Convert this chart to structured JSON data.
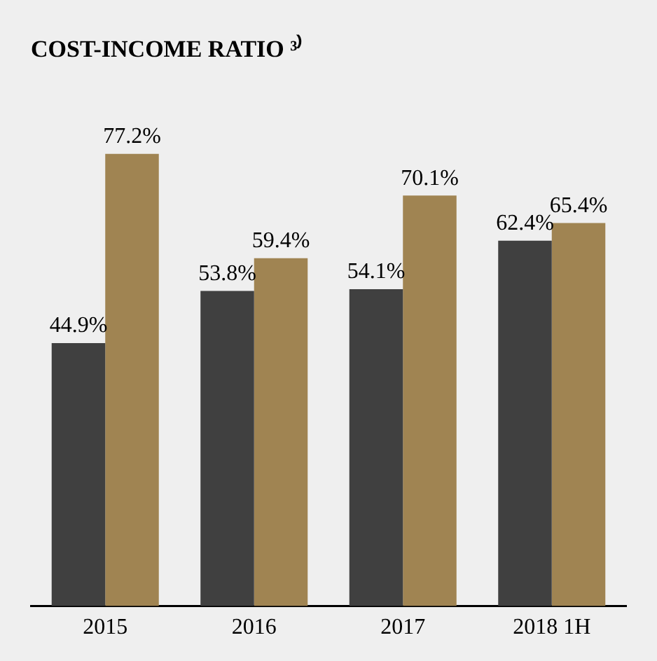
{
  "chart_data": {
    "type": "bar",
    "title": "COST-INCOME RATIO ³⁾",
    "categories": [
      "2015",
      "2016",
      "2017",
      "2018 1H"
    ],
    "series": [
      {
        "color": "#404040",
        "values": [
          44.9,
          53.8,
          54.1,
          62.4
        ],
        "value_labels": [
          "44.9%",
          "53.8%",
          "54.1%",
          "62.4%"
        ]
      },
      {
        "color": "#a08452",
        "values": [
          77.2,
          59.4,
          70.1,
          65.4
        ],
        "value_labels": [
          "77.2%",
          "59.4%",
          "70.1%",
          "65.4%"
        ]
      }
    ],
    "grid": false,
    "legend": false
  }
}
